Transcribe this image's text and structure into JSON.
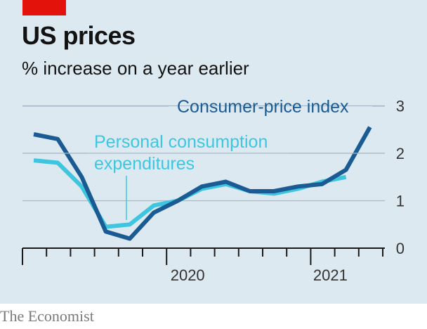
{
  "header": {
    "title": "US prices",
    "subtitle": "% increase on a year earlier"
  },
  "footer": {
    "source": "The Economist"
  },
  "colors": {
    "background": "#dde9f0",
    "accent_tag": "#e3120b",
    "cpi_line": "#1a5b94",
    "pce_line": "#3ec6e0",
    "grid": "#a9bac8"
  },
  "chart_data": {
    "type": "line",
    "title": "US prices",
    "subtitle": "% increase on a year earlier",
    "xlabel": "",
    "ylabel": "",
    "ylim": [
      0,
      3
    ],
    "yticks": [
      "0",
      "1",
      "2",
      "3"
    ],
    "x_tick_labels": [
      "2020",
      "2021"
    ],
    "x": [
      "2019-10",
      "2019-11",
      "2019-12",
      "2020-01",
      "2020-02",
      "2020-03",
      "2020-04",
      "2020-05",
      "2020-06",
      "2020-07",
      "2020-08",
      "2020-09",
      "2020-10",
      "2020-11",
      "2020-12",
      "2021-01",
      "2021-02"
    ],
    "series": [
      {
        "name": "Consumer-price index",
        "values": [
          2.4,
          2.3,
          1.5,
          0.35,
          0.2,
          0.75,
          1.0,
          1.3,
          1.4,
          1.2,
          1.2,
          1.3,
          1.35,
          1.65,
          2.55,
          null,
          null
        ]
      },
      {
        "name": "Personal consumption expenditures",
        "values": [
          1.85,
          1.8,
          1.3,
          0.45,
          0.5,
          0.9,
          1.0,
          1.25,
          1.35,
          1.2,
          1.15,
          1.25,
          1.4,
          1.5,
          null,
          null,
          null
        ]
      }
    ],
    "annotations": [
      {
        "text": "Consumer-price index"
      },
      {
        "text": "Personal consumption",
        "text2": "expenditures"
      }
    ],
    "grid": true,
    "legend": "inline labels"
  }
}
